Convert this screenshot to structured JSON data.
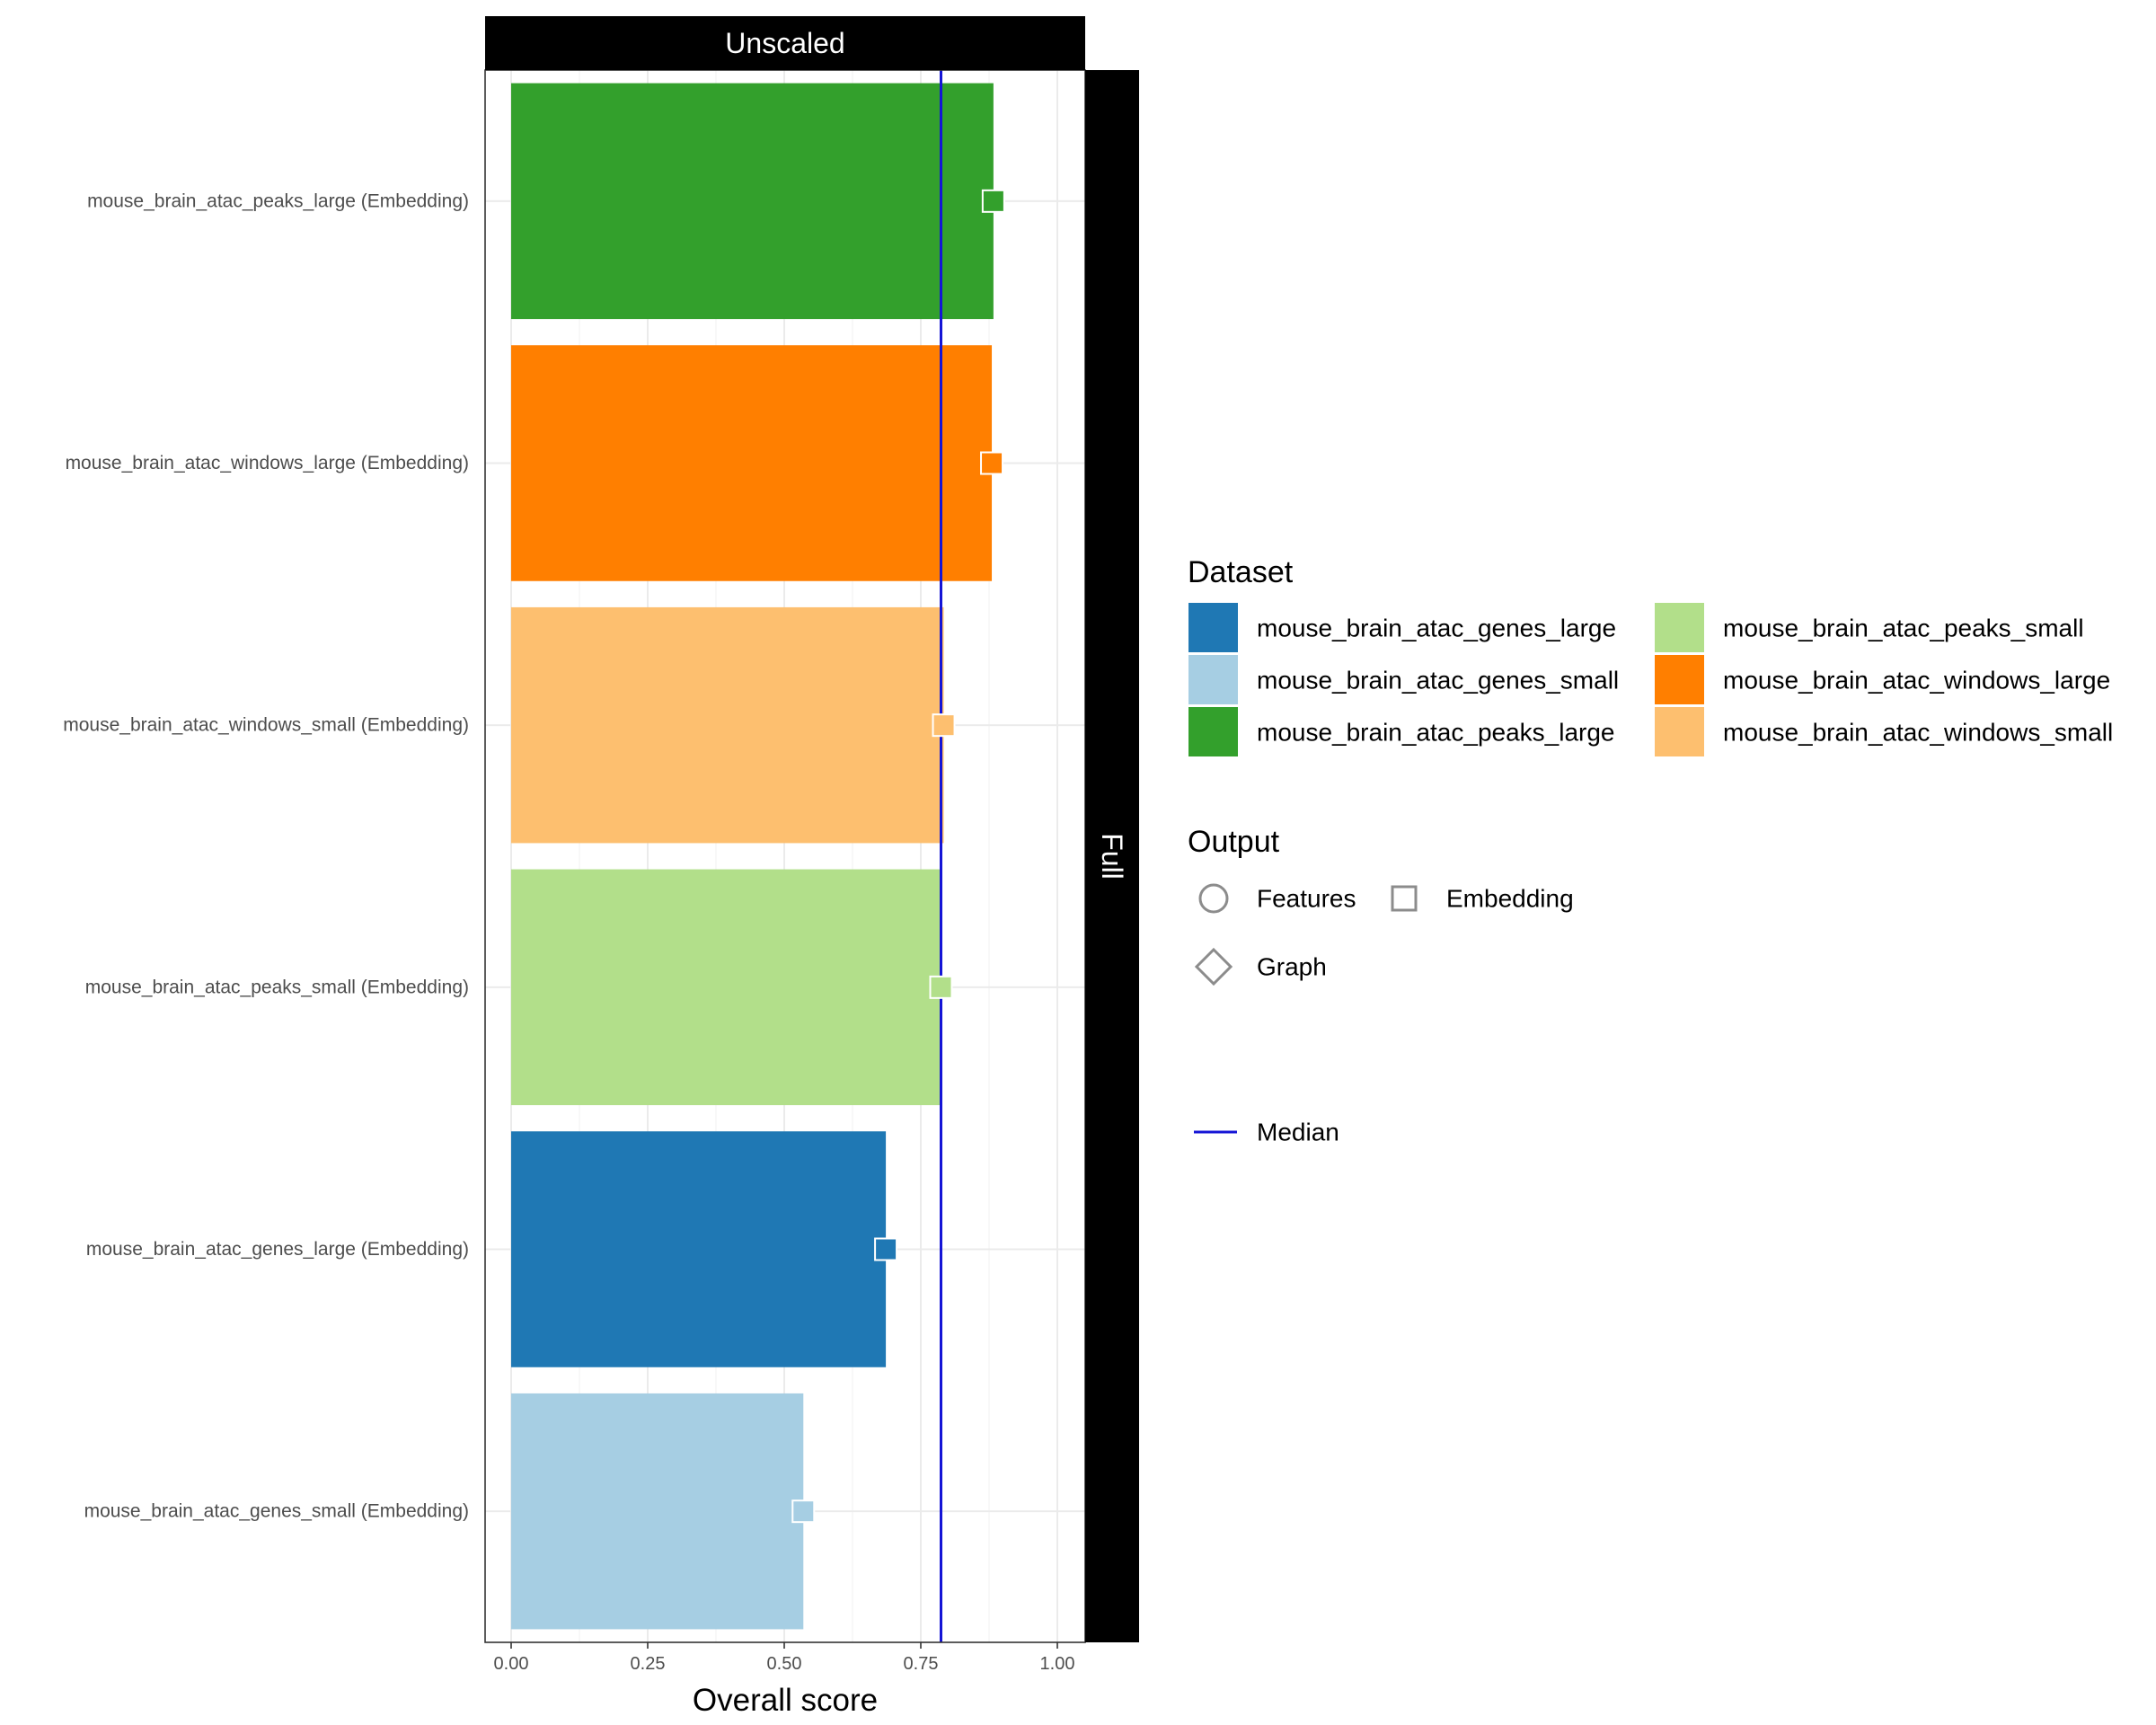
{
  "chart_data": {
    "type": "bar",
    "orientation": "horizontal",
    "facet_top": "Unscaled",
    "facet_right": "Full",
    "xlabel": "Overall score",
    "xlim": [
      0,
      1.05
    ],
    "xticks": [
      0,
      0.25,
      0.5,
      0.75,
      1
    ],
    "xtick_labels": [
      "0.00",
      "0.25",
      "0.50",
      "0.75",
      "1.00"
    ],
    "grid": true,
    "median": 0.787,
    "categories": [
      "mouse_brain_atac_peaks_large (Embedding)",
      "mouse_brain_atac_windows_large (Embedding)",
      "mouse_brain_atac_windows_small (Embedding)",
      "mouse_brain_atac_peaks_small (Embedding)",
      "mouse_brain_atac_genes_large (Embedding)",
      "mouse_brain_atac_genes_small (Embedding)"
    ],
    "values": [
      0.883,
      0.88,
      0.792,
      0.787,
      0.686,
      0.535
    ],
    "colors": [
      "#33a02c",
      "#ff7f00",
      "#fdbf6f",
      "#b2df8a",
      "#1f78b4",
      "#a6cee3"
    ],
    "output_markers": [
      "Embedding",
      "Embedding",
      "Embedding",
      "Embedding",
      "Embedding",
      "Embedding"
    ],
    "legend_position": "right",
    "legends": {
      "dataset": {
        "title": "Dataset",
        "items": [
          {
            "label": "mouse_brain_atac_genes_large",
            "color": "#1f78b4"
          },
          {
            "label": "mouse_brain_atac_genes_small",
            "color": "#a6cee3"
          },
          {
            "label": "mouse_brain_atac_peaks_large",
            "color": "#33a02c"
          },
          {
            "label": "mouse_brain_atac_peaks_small",
            "color": "#b2df8a"
          },
          {
            "label": "mouse_brain_atac_windows_large",
            "color": "#ff7f00"
          },
          {
            "label": "mouse_brain_atac_windows_small",
            "color": "#fdbf6f"
          }
        ]
      },
      "output": {
        "title": "Output",
        "items": [
          {
            "label": "Features",
            "shape": "circle"
          },
          {
            "label": "Embedding",
            "shape": "square"
          },
          {
            "label": "Graph",
            "shape": "diamond"
          }
        ]
      },
      "median": {
        "label": "Median",
        "color": "#1414d6"
      }
    }
  }
}
